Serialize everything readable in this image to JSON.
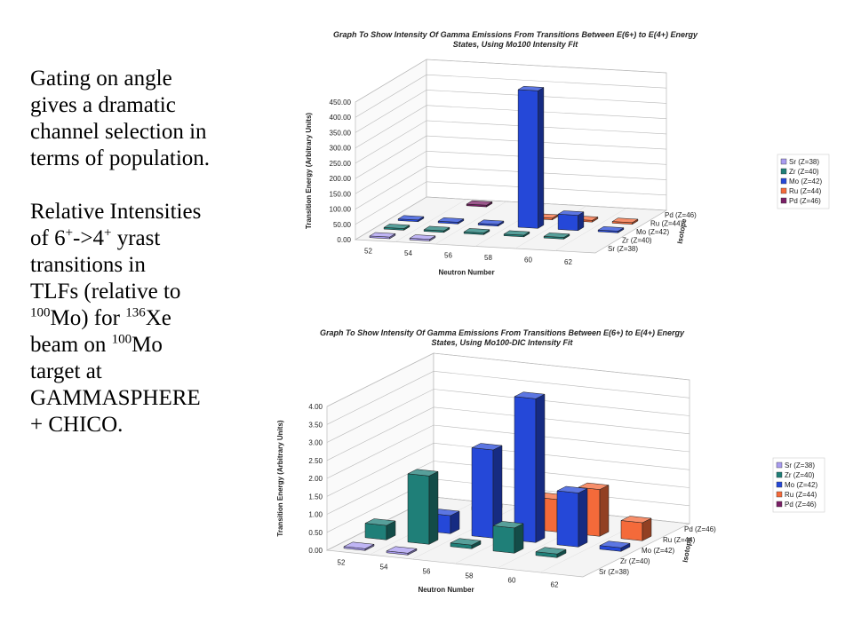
{
  "slide": {
    "text_lines_1": [
      "Gating on angle",
      "gives a dramatic",
      "channel selection in",
      "terms of population."
    ],
    "rel": {
      "l1a": "Relative Intensities",
      "l2a": "of 6",
      "l2b": "+",
      "l2c": "->4",
      "l2d": "+",
      "l2e": " yrast",
      "l3": "transitions in",
      "l4": "TLFs (relative to",
      "l5a": "100",
      "l5b": "Mo) for ",
      "l5c": "136",
      "l5d": "Xe",
      "l6a": "beam on ",
      "l6b": "100",
      "l6c": "Mo",
      "l7": "target at",
      "l8": "GAMMASPHERE",
      "l9": "+ CHICO."
    }
  },
  "colors": {
    "Sr": "#a99cf0",
    "Zr": "#1f7f78",
    "Mo": "#2548d8",
    "Ru": "#f46a3a",
    "Pd": "#7a1f66",
    "grid": "#b9b9b9",
    "axis": "#777777"
  },
  "chart_data": [
    {
      "type": "bar",
      "title_lines": [
        "Graph To Show Intensity Of Gamma Emissions From Transitions Between E(6+) to E(4+) Energy",
        "States, Using Mo100 Intensity Fit"
      ],
      "ylabel": "Transition Energy (Arbitrary Units)",
      "xlabel": "Neutron Number",
      "zlabel": "Isotope",
      "yticks": [
        "0.00",
        "50.00",
        "100.00",
        "150.00",
        "200.00",
        "250.00",
        "300.00",
        "350.00",
        "400.00",
        "450.00"
      ],
      "ylim": [
        0,
        450
      ],
      "categories": [
        "52",
        "54",
        "56",
        "58",
        "60",
        "62"
      ],
      "isotopes": [
        "Sr (Z=38)",
        "Zr (Z=40)",
        "Mo (Z=42)",
        "Ru (Z=44)",
        "Pd (Z=46)"
      ],
      "legend": [
        "Sr (Z=38)",
        "Zr (Z=40)",
        "Mo (Z=42)",
        "Ru (Z=44)",
        "Pd (Z=46)"
      ],
      "legend_position": "right",
      "series": [
        {
          "name": "Sr (Z=38)",
          "values": [
            1,
            1,
            null,
            null,
            null,
            null
          ]
        },
        {
          "name": "Zr (Z=40)",
          "values": [
            1,
            1,
            1,
            1,
            1,
            null
          ]
        },
        {
          "name": "Mo (Z=42)",
          "values": [
            1,
            1,
            1,
            450,
            50,
            1
          ]
        },
        {
          "name": "Ru (Z=44)",
          "values": [
            null,
            null,
            null,
            1,
            1,
            1
          ]
        },
        {
          "name": "Pd (Z=46)",
          "values": [
            null,
            1,
            null,
            null,
            null,
            null
          ]
        }
      ]
    },
    {
      "type": "bar",
      "title_lines": [
        "Graph To Show Intensity Of Gamma Emissions From Transitions Between E(6+) to E(4+) Energy",
        "States, Using Mo100-DIC Intensity Fit"
      ],
      "ylabel": "Transition Energy (Arbitrary Units)",
      "xlabel": "Neutron Number",
      "zlabel": "Isotope",
      "yticks": [
        "0.00",
        "0.50",
        "1.00",
        "1.50",
        "2.00",
        "2.50",
        "3.00",
        "3.50",
        "4.00"
      ],
      "ylim": [
        0,
        4
      ],
      "categories": [
        "52",
        "54",
        "56",
        "58",
        "60",
        "62"
      ],
      "isotopes": [
        "Sr (Z=38)",
        "Zr (Z=40)",
        "Mo (Z=42)",
        "Ru (Z=44)",
        "Pd (Z=46)"
      ],
      "legend": [
        "Sr (Z=38)",
        "Zr (Z=40)",
        "Mo (Z=42)",
        "Ru (Z=44)",
        "Pd (Z=46)"
      ],
      "legend_position": "right",
      "series": [
        {
          "name": "Sr (Z=38)",
          "values": [
            0.02,
            0.02,
            null,
            null,
            null,
            null
          ]
        },
        {
          "name": "Zr (Z=40)",
          "values": [
            0.4,
            1.9,
            0.1,
            0.7,
            0.1,
            null
          ]
        },
        {
          "name": "Mo (Z=42)",
          "values": [
            null,
            0.5,
            2.45,
            4.0,
            1.5,
            0.1
          ]
        },
        {
          "name": "Ru (Z=44)",
          "values": [
            null,
            null,
            null,
            0.9,
            1.3,
            0.5
          ]
        },
        {
          "name": "Pd (Z=46)",
          "values": [
            null,
            0.1,
            null,
            null,
            null,
            null
          ]
        }
      ]
    }
  ]
}
